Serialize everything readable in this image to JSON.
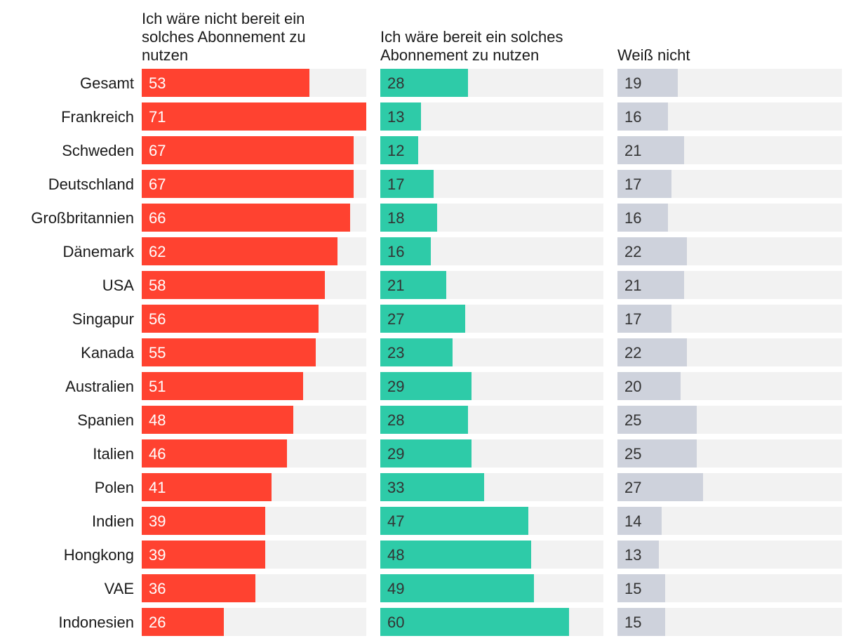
{
  "chart_data": {
    "type": "bar",
    "orientation": "horizontal",
    "layout": "small-multiples",
    "categories": [
      "Gesamt",
      "Frankreich",
      "Schweden",
      "Deutschland",
      "Großbritannien",
      "Dänemark",
      "USA",
      "Singapur",
      "Kanada",
      "Australien",
      "Spanien",
      "Italien",
      "Polen",
      "Indien",
      "Hongkong",
      "VAE",
      "Indonesien"
    ],
    "xlim": [
      0,
      71
    ],
    "unit": "%",
    "series": [
      {
        "name": "Ich wäre nicht bereit ein solches Abonnement zu nutzen",
        "header_lines": [
          "Ich wäre nicht bereit ein",
          "solches Abonnement zu",
          "nutzen"
        ],
        "color": "#ff4230",
        "label_color": "#ffffff",
        "values": [
          53,
          71,
          67,
          67,
          66,
          62,
          58,
          56,
          55,
          51,
          48,
          46,
          41,
          39,
          39,
          36,
          26
        ]
      },
      {
        "name": "Ich wäre bereit ein solches Abonnement zu nutzen",
        "header_lines": [
          "Ich wäre bereit ein solches",
          "Abonnement zu nutzen"
        ],
        "color": "#2ecba8",
        "label_color": "#333333",
        "values": [
          28,
          13,
          12,
          17,
          18,
          16,
          21,
          27,
          23,
          29,
          28,
          29,
          33,
          47,
          48,
          49,
          60
        ]
      },
      {
        "name": "Weiß nicht",
        "header_lines": [
          "Weiß nicht"
        ],
        "color": "#ced2dc",
        "label_color": "#333333",
        "values": [
          19,
          16,
          21,
          17,
          16,
          22,
          21,
          17,
          22,
          20,
          25,
          25,
          27,
          14,
          13,
          15,
          15
        ]
      }
    ],
    "track_color": "#f2f2f2"
  }
}
